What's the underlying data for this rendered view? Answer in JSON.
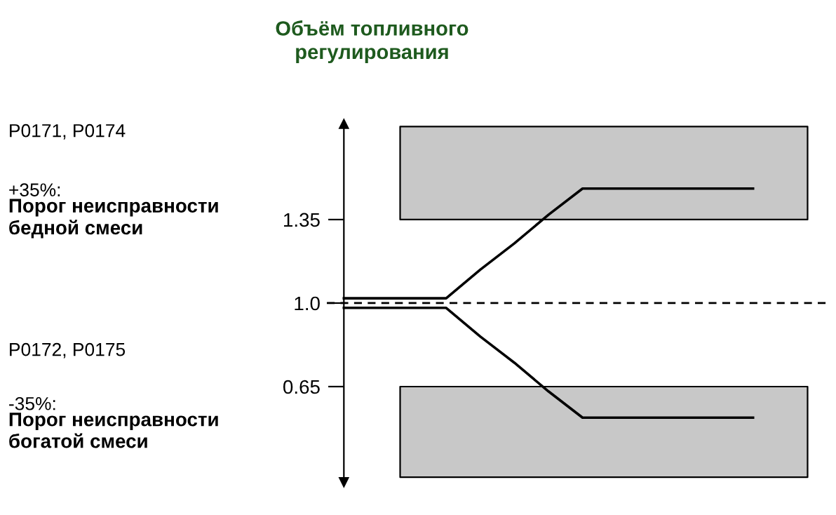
{
  "chart_data": {
    "type": "line",
    "title": "Объём топливного\nрегулирования",
    "series": [
      {
        "color": "#000000",
        "values": [
          1.02,
          1.02,
          1.02,
          1.02,
          1.14,
          1.25,
          1.37,
          1.48,
          1.48,
          1.48,
          1.48,
          1.48,
          1.48
        ]
      },
      {
        "color": "#000000",
        "values": [
          0.98,
          0.98,
          0.98,
          0.98,
          0.86,
          0.75,
          0.63,
          0.52,
          0.52,
          0.52,
          0.52,
          0.52,
          0.52
        ]
      }
    ],
    "categories": [
      null,
      null,
      null,
      null,
      null,
      null,
      null,
      null,
      null,
      null,
      null,
      null,
      null
    ],
    "grid": false,
    "ylim": [
      0.25,
      1.75
    ],
    "yticks": [
      0.65,
      {
        "value": 1,
        "label": "1.0"
      },
      1.35
    ],
    "tick_labels": "y",
    "ref_lines": [
      {
        "axis": "y",
        "value": 1,
        "line_style": "dashed",
        "color": "#000000"
      }
    ],
    "bands": [
      {
        "axis": "y",
        "from": 1.35,
        "to": 1.74,
        "color": "#c8c8c8"
      },
      {
        "axis": "y",
        "from": 0.27,
        "to": 0.65,
        "color": "#c8c8c8"
      }
    ],
    "annotations": [
      "P0171, P0174",
      "+35%:",
      "Порог неисправности\nбедной смеси",
      "P0172, P0175",
      "-35%:",
      "Порог неисправности\nбогатой смеси"
    ],
    "legend": false,
    "line_style": "solid",
    "marker": "none"
  }
}
